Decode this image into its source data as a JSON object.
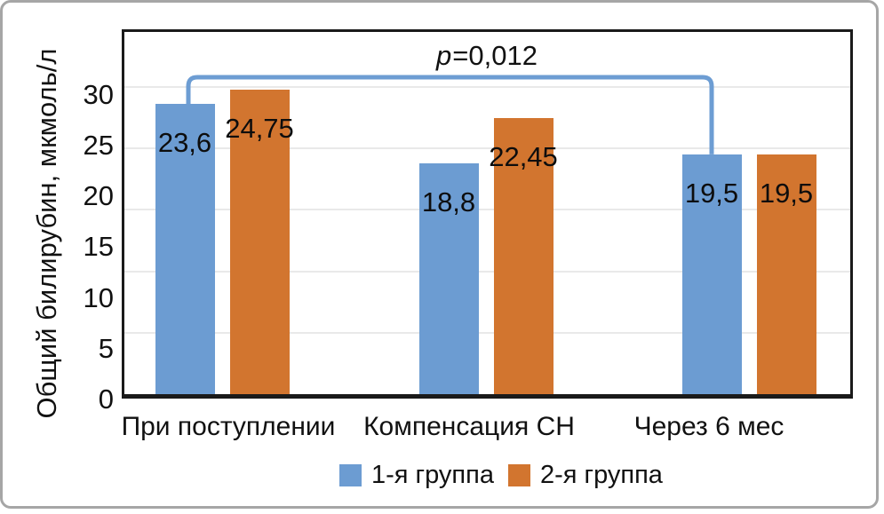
{
  "chart_data": {
    "type": "bar",
    "title": "",
    "ylabel": "Общий билирубин, мкмоль/л",
    "xlabel": "",
    "categories": [
      "При поступлении",
      "Компенсация СН",
      "Через 6 мес"
    ],
    "series": [
      {
        "name": "1-я группа",
        "color": "#6C9CD2",
        "values": [
          23.6,
          18.8,
          19.5
        ],
        "value_labels": [
          "23,6",
          "18,8",
          "19,5"
        ]
      },
      {
        "name": "2-я группа",
        "color": "#D2752F",
        "values": [
          24.75,
          22.45,
          19.5
        ],
        "value_labels": [
          "24,75",
          "22,45",
          "19,5"
        ]
      }
    ],
    "ylim": [
      0,
      30
    ],
    "yticks": [
      "0",
      "5",
      "10",
      "15",
      "20",
      "25",
      "30"
    ],
    "grid": true,
    "gridline_values": [
      5,
      10,
      15,
      20,
      25
    ],
    "legend_position": "bottom-center",
    "annotation": {
      "p_italic": "p",
      "p_rest": "=0,012",
      "series": "1-я группа",
      "from_category": "При поступлении",
      "to_category": "Через 6 мес",
      "bracket_color": "#6D9DD3"
    }
  },
  "frame": {
    "border_color": "#a6a6a6",
    "background": "#ffffff",
    "axis_color": "#1a1a1a",
    "gridline_color": "#e9e9e9",
    "text_color": "#111111"
  }
}
